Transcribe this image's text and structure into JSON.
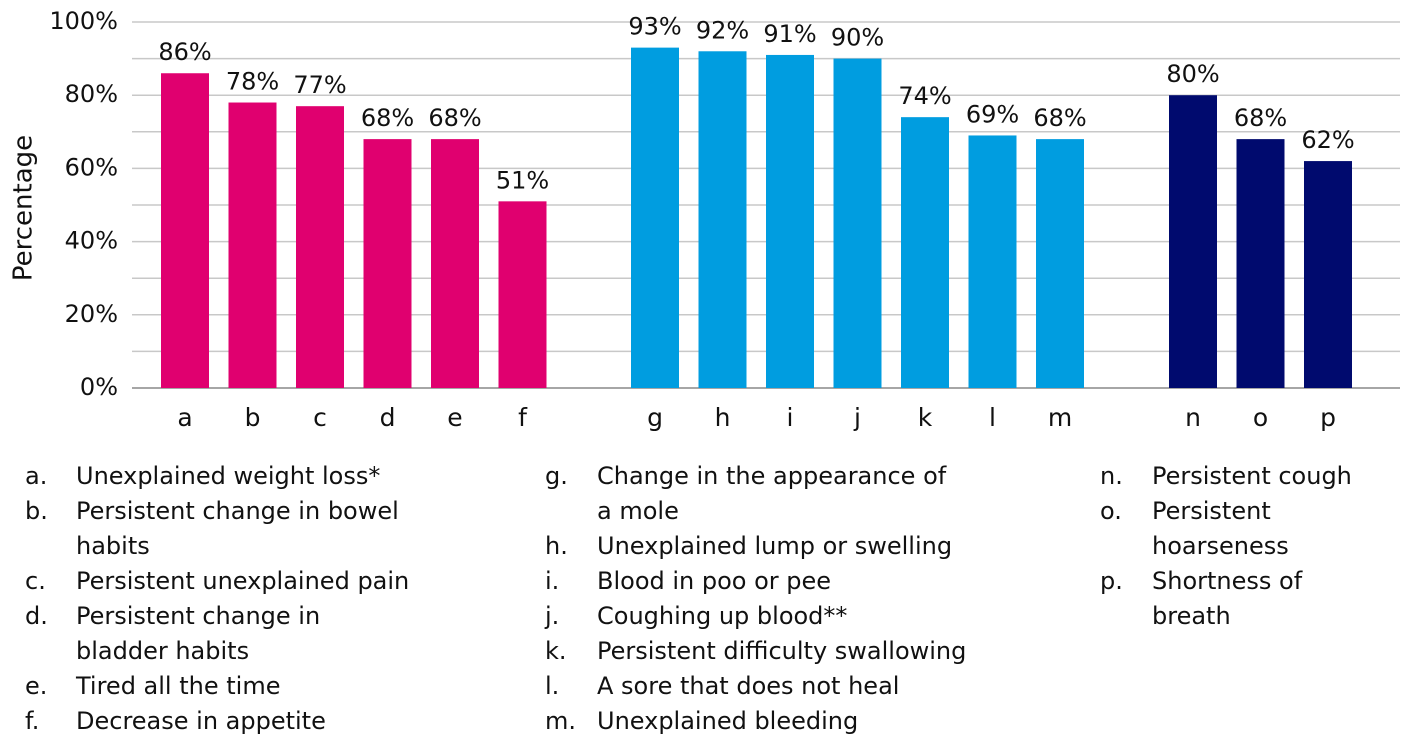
{
  "chart_data": {
    "type": "bar",
    "y_label": "Percentage",
    "ylim": [
      0,
      100
    ],
    "yticks": [
      {
        "value": 0,
        "label": "0%"
      },
      {
        "value": 20,
        "label": "20%"
      },
      {
        "value": 40,
        "label": "40%"
      },
      {
        "value": 60,
        "label": "60%"
      },
      {
        "value": 80,
        "label": "80%"
      },
      {
        "value": 100,
        "label": "100%"
      }
    ],
    "minor_yticks": [
      10,
      30,
      50,
      70,
      90
    ],
    "grid": true,
    "groups": [
      {
        "color": "#e0006f",
        "categories": [
          "a",
          "b",
          "c",
          "d",
          "e",
          "f"
        ],
        "values": [
          86,
          78,
          77,
          68,
          68,
          51
        ],
        "value_labels": [
          "86%",
          "78%",
          "77%",
          "68%",
          "68%",
          "51%"
        ],
        "legend": [
          {
            "key": "a.",
            "lines": [
              "Unexplained weight loss*"
            ]
          },
          {
            "key": "b.",
            "lines": [
              "Persistent change in bowel",
              "habits"
            ]
          },
          {
            "key": "c.",
            "lines": [
              "Persistent unexplained pain"
            ]
          },
          {
            "key": "d.",
            "lines": [
              "Persistent change in",
              "bladder habits"
            ]
          },
          {
            "key": "e.",
            "lines": [
              "Tired all the time"
            ]
          },
          {
            "key": "f.",
            "lines": [
              "Decrease in appetite"
            ]
          }
        ]
      },
      {
        "color": "#009de0",
        "categories": [
          "g",
          "h",
          "i",
          "j",
          "k",
          "l",
          "m"
        ],
        "values": [
          93,
          92,
          91,
          90,
          74,
          69,
          68
        ],
        "value_labels": [
          "93%",
          "92%",
          "91%",
          "90%",
          "74%",
          "69%",
          "68%"
        ],
        "legend": [
          {
            "key": "g.",
            "lines": [
              "Change in the appearance of",
              "a mole"
            ]
          },
          {
            "key": "h.",
            "lines": [
              "Unexplained lump or swelling"
            ]
          },
          {
            "key": "i.",
            "lines": [
              "Blood in poo or pee"
            ]
          },
          {
            "key": "j.",
            "lines": [
              "Coughing up blood**"
            ]
          },
          {
            "key": "k.",
            "lines": [
              "Persistent difficulty swallowing"
            ]
          },
          {
            "key": "l.",
            "lines": [
              "A sore that does not heal"
            ]
          },
          {
            "key": "m.",
            "lines": [
              "Unexplained bleeding"
            ]
          }
        ]
      },
      {
        "color": "#000a6e",
        "categories": [
          "n",
          "o",
          "p"
        ],
        "values": [
          80,
          68,
          62
        ],
        "value_labels": [
          "80%",
          "68%",
          "62%"
        ],
        "legend": [
          {
            "key": "n.",
            "lines": [
              "Persistent cough"
            ]
          },
          {
            "key": "o.",
            "lines": [
              "Persistent",
              "hoarseness"
            ]
          },
          {
            "key": "p.",
            "lines": [
              "Shortness of",
              "breath"
            ]
          }
        ]
      }
    ]
  }
}
